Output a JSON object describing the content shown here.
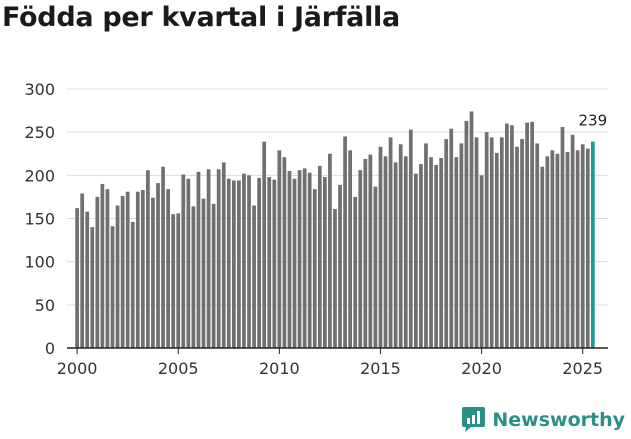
{
  "title": "Födda per kvartal i Järfälla",
  "brand": {
    "name": "Newsworthy",
    "icon": "newsworthy-chart-icon"
  },
  "colors": {
    "bar": "#707070",
    "highlight": "#1a9c96",
    "brand": "#2a8f88",
    "grid": "#dcdcdc",
    "axis": "#222222"
  },
  "chart_data": {
    "type": "bar",
    "title": "Födda per kvartal i Järfälla",
    "xlabel": "",
    "ylabel": "",
    "ylim": [
      0,
      300
    ],
    "yticks": [
      0,
      50,
      100,
      150,
      200,
      250,
      300
    ],
    "xlim": [
      1999.5,
      2026.25
    ],
    "xticks": [
      2000,
      2005,
      2010,
      2015,
      2020,
      2025
    ],
    "start": {
      "year": 2000,
      "quarter": 1
    },
    "values": [
      162,
      179,
      158,
      140,
      175,
      190,
      184,
      141,
      165,
      176,
      181,
      146,
      181,
      183,
      206,
      174,
      191,
      210,
      184,
      155,
      156,
      201,
      196,
      164,
      204,
      173,
      207,
      167,
      207,
      215,
      196,
      194,
      194,
      202,
      200,
      165,
      197,
      239,
      198,
      195,
      229,
      221,
      205,
      196,
      206,
      208,
      203,
      184,
      211,
      198,
      225,
      161,
      189,
      245,
      229,
      175,
      206,
      219,
      224,
      187,
      233,
      222,
      244,
      215,
      236,
      222,
      253,
      202,
      213,
      237,
      221,
      212,
      220,
      242,
      254,
      221,
      237,
      263,
      274,
      244,
      200,
      250,
      244,
      226,
      244,
      260,
      258,
      233,
      242,
      261,
      262,
      237,
      210,
      222,
      229,
      225,
      256,
      227,
      247,
      229,
      236,
      231,
      239
    ],
    "highlight_last_label": "239"
  }
}
